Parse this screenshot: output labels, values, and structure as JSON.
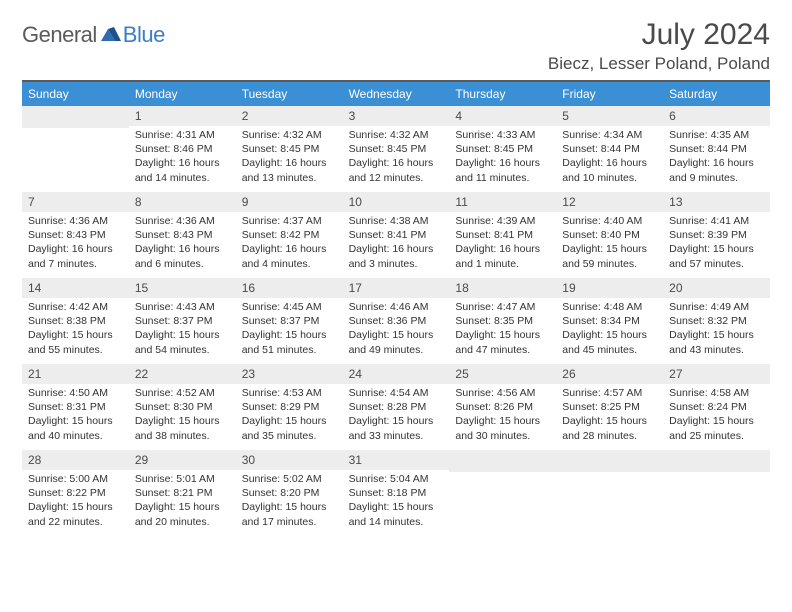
{
  "logo": {
    "word1": "General",
    "word2": "Blue"
  },
  "title": {
    "month": "July 2024",
    "location": "Biecz, Lesser Poland, Poland"
  },
  "colors": {
    "header_bar": "#3b8fd4",
    "header_text": "#ffffff",
    "daynum_bg": "#ededed",
    "text": "#333333",
    "rule": "#5a5a5a",
    "logo_gray": "#5a5a5a",
    "logo_blue": "#3b7fc4"
  },
  "weekdays": [
    "Sunday",
    "Monday",
    "Tuesday",
    "Wednesday",
    "Thursday",
    "Friday",
    "Saturday"
  ],
  "weeks": [
    [
      null,
      {
        "n": "1",
        "sr": "4:31 AM",
        "ss": "8:46 PM",
        "dl": "16 hours and 14 minutes."
      },
      {
        "n": "2",
        "sr": "4:32 AM",
        "ss": "8:45 PM",
        "dl": "16 hours and 13 minutes."
      },
      {
        "n": "3",
        "sr": "4:32 AM",
        "ss": "8:45 PM",
        "dl": "16 hours and 12 minutes."
      },
      {
        "n": "4",
        "sr": "4:33 AM",
        "ss": "8:45 PM",
        "dl": "16 hours and 11 minutes."
      },
      {
        "n": "5",
        "sr": "4:34 AM",
        "ss": "8:44 PM",
        "dl": "16 hours and 10 minutes."
      },
      {
        "n": "6",
        "sr": "4:35 AM",
        "ss": "8:44 PM",
        "dl": "16 hours and 9 minutes."
      }
    ],
    [
      {
        "n": "7",
        "sr": "4:36 AM",
        "ss": "8:43 PM",
        "dl": "16 hours and 7 minutes."
      },
      {
        "n": "8",
        "sr": "4:36 AM",
        "ss": "8:43 PM",
        "dl": "16 hours and 6 minutes."
      },
      {
        "n": "9",
        "sr": "4:37 AM",
        "ss": "8:42 PM",
        "dl": "16 hours and 4 minutes."
      },
      {
        "n": "10",
        "sr": "4:38 AM",
        "ss": "8:41 PM",
        "dl": "16 hours and 3 minutes."
      },
      {
        "n": "11",
        "sr": "4:39 AM",
        "ss": "8:41 PM",
        "dl": "16 hours and 1 minute."
      },
      {
        "n": "12",
        "sr": "4:40 AM",
        "ss": "8:40 PM",
        "dl": "15 hours and 59 minutes."
      },
      {
        "n": "13",
        "sr": "4:41 AM",
        "ss": "8:39 PM",
        "dl": "15 hours and 57 minutes."
      }
    ],
    [
      {
        "n": "14",
        "sr": "4:42 AM",
        "ss": "8:38 PM",
        "dl": "15 hours and 55 minutes."
      },
      {
        "n": "15",
        "sr": "4:43 AM",
        "ss": "8:37 PM",
        "dl": "15 hours and 54 minutes."
      },
      {
        "n": "16",
        "sr": "4:45 AM",
        "ss": "8:37 PM",
        "dl": "15 hours and 51 minutes."
      },
      {
        "n": "17",
        "sr": "4:46 AM",
        "ss": "8:36 PM",
        "dl": "15 hours and 49 minutes."
      },
      {
        "n": "18",
        "sr": "4:47 AM",
        "ss": "8:35 PM",
        "dl": "15 hours and 47 minutes."
      },
      {
        "n": "19",
        "sr": "4:48 AM",
        "ss": "8:34 PM",
        "dl": "15 hours and 45 minutes."
      },
      {
        "n": "20",
        "sr": "4:49 AM",
        "ss": "8:32 PM",
        "dl": "15 hours and 43 minutes."
      }
    ],
    [
      {
        "n": "21",
        "sr": "4:50 AM",
        "ss": "8:31 PM",
        "dl": "15 hours and 40 minutes."
      },
      {
        "n": "22",
        "sr": "4:52 AM",
        "ss": "8:30 PM",
        "dl": "15 hours and 38 minutes."
      },
      {
        "n": "23",
        "sr": "4:53 AM",
        "ss": "8:29 PM",
        "dl": "15 hours and 35 minutes."
      },
      {
        "n": "24",
        "sr": "4:54 AM",
        "ss": "8:28 PM",
        "dl": "15 hours and 33 minutes."
      },
      {
        "n": "25",
        "sr": "4:56 AM",
        "ss": "8:26 PM",
        "dl": "15 hours and 30 minutes."
      },
      {
        "n": "26",
        "sr": "4:57 AM",
        "ss": "8:25 PM",
        "dl": "15 hours and 28 minutes."
      },
      {
        "n": "27",
        "sr": "4:58 AM",
        "ss": "8:24 PM",
        "dl": "15 hours and 25 minutes."
      }
    ],
    [
      {
        "n": "28",
        "sr": "5:00 AM",
        "ss": "8:22 PM",
        "dl": "15 hours and 22 minutes."
      },
      {
        "n": "29",
        "sr": "5:01 AM",
        "ss": "8:21 PM",
        "dl": "15 hours and 20 minutes."
      },
      {
        "n": "30",
        "sr": "5:02 AM",
        "ss": "8:20 PM",
        "dl": "15 hours and 17 minutes."
      },
      {
        "n": "31",
        "sr": "5:04 AM",
        "ss": "8:18 PM",
        "dl": "15 hours and 14 minutes."
      },
      null,
      null,
      null
    ]
  ],
  "labels": {
    "sunrise": "Sunrise:",
    "sunset": "Sunset:",
    "daylight": "Daylight:"
  }
}
